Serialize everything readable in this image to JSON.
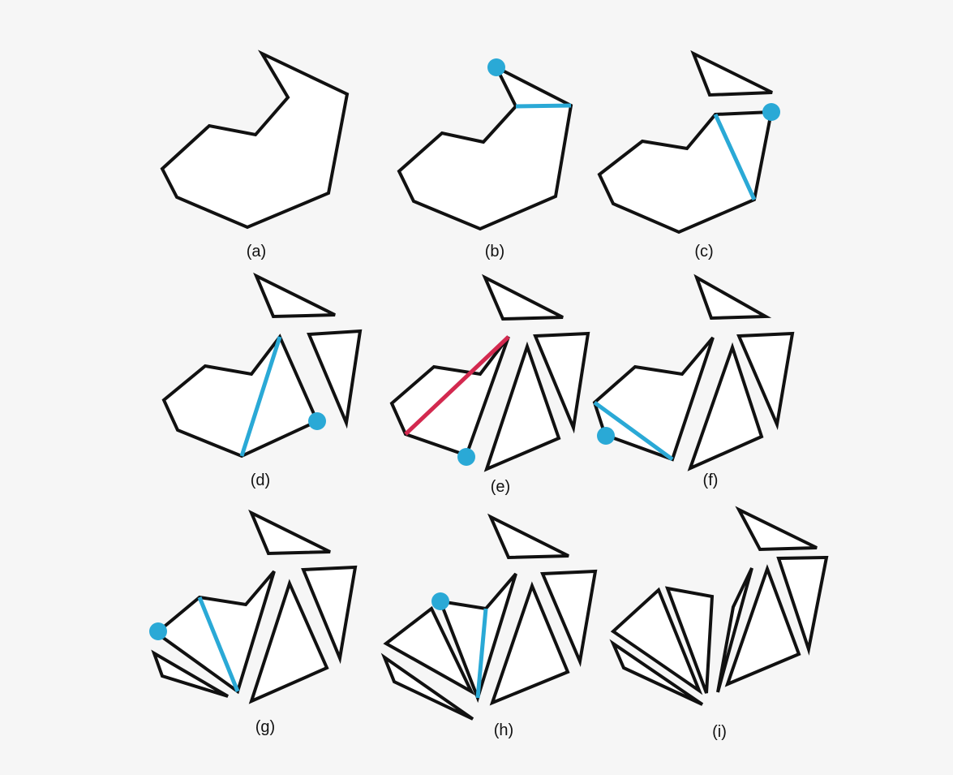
{
  "figure": {
    "panels": [
      {
        "id": "a",
        "caption": "(a)"
      },
      {
        "id": "b",
        "caption": "(b)"
      },
      {
        "id": "c",
        "caption": "(c)"
      },
      {
        "id": "d",
        "caption": "(d)"
      },
      {
        "id": "e",
        "caption": "(e)"
      },
      {
        "id": "f",
        "caption": "(f)"
      },
      {
        "id": "g",
        "caption": "(g)"
      },
      {
        "id": "h",
        "caption": "(h)"
      },
      {
        "id": "i",
        "caption": "(i)"
      }
    ]
  },
  "colors": {
    "background": "#f6f6f6",
    "outline": "#111111",
    "fill": "#ffffff",
    "highlight_cut": "#2aa9d6",
    "rejected_cut": "#d3294f"
  }
}
